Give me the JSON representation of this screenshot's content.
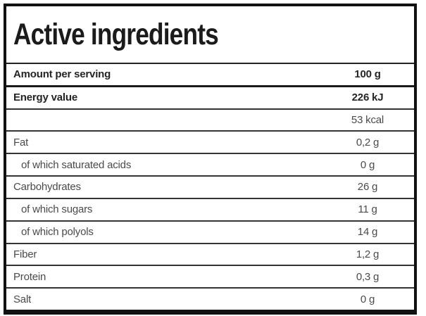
{
  "title": "Active ingredients",
  "table": {
    "header": {
      "label": "Amount per serving",
      "value": "100 g",
      "bold": true
    },
    "rows": [
      {
        "label": "Energy value",
        "value": "226 kJ",
        "bold": true,
        "indent": false
      },
      {
        "label": "",
        "value": "53 kcal",
        "bold": false,
        "indent": false
      },
      {
        "label": "Fat",
        "value": "0,2 g",
        "bold": false,
        "indent": false
      },
      {
        "label": "of which saturated acids",
        "value": "0 g",
        "bold": false,
        "indent": true
      },
      {
        "label": "Carbohydrates",
        "value": "26 g",
        "bold": false,
        "indent": false
      },
      {
        "label": "of which sugars",
        "value": "11 g",
        "bold": false,
        "indent": true
      },
      {
        "label": "of which polyols",
        "value": "14 g",
        "bold": false,
        "indent": true
      },
      {
        "label": "Fiber",
        "value": "1,2 g",
        "bold": false,
        "indent": false
      },
      {
        "label": "Protein",
        "value": "0,3 g",
        "bold": false,
        "indent": false
      },
      {
        "label": "Salt",
        "value": "0 g",
        "bold": false,
        "indent": false
      }
    ]
  },
  "colors": {
    "outer_border": "#111111",
    "row_separator": "#333333",
    "title_text": "#1b1b1b",
    "bold_text": "#242424",
    "regular_text": "#4a4a4a",
    "background": "#ffffff"
  }
}
